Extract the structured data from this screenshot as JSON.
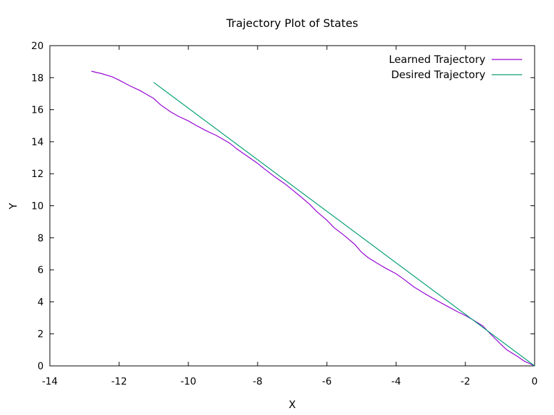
{
  "chart_data": {
    "type": "line",
    "title": "Trajectory Plot of States",
    "xlabel": "X",
    "ylabel": "Y",
    "xlim": [
      -14,
      0
    ],
    "ylim": [
      0,
      20
    ],
    "xticks": [
      "-14",
      "-12",
      "-10",
      "-8",
      "-6",
      "-4",
      "-2",
      "0"
    ],
    "yticks": [
      "0",
      "2",
      "4",
      "6",
      "8",
      "10",
      "12",
      "14",
      "16",
      "18",
      "20"
    ],
    "grid": false,
    "legend_position": "top-right",
    "series": [
      {
        "name": "Learned Trajectory",
        "color": "#9400D3",
        "x": [
          -12.8,
          -12.5,
          -12.2,
          -12.0,
          -11.7,
          -11.4,
          -11.2,
          -11.0,
          -10.8,
          -10.5,
          -10.3,
          -10.0,
          -9.8,
          -9.5,
          -9.2,
          -9.0,
          -8.8,
          -8.6,
          -8.3,
          -8.0,
          -7.8,
          -7.5,
          -7.2,
          -7.0,
          -6.8,
          -6.5,
          -6.3,
          -6.0,
          -5.8,
          -5.5,
          -5.2,
          -5.0,
          -4.8,
          -4.5,
          -4.3,
          -4.0,
          -3.8,
          -3.5,
          -3.2,
          -3.0,
          -2.8,
          -2.5,
          -2.2,
          -2.0,
          -1.8,
          -1.5,
          -1.3,
          -1.0,
          -0.8,
          -0.5,
          -0.3,
          0.0
        ],
        "y": [
          18.4,
          18.25,
          18.05,
          17.85,
          17.5,
          17.2,
          16.95,
          16.7,
          16.3,
          15.85,
          15.6,
          15.3,
          15.05,
          14.7,
          14.4,
          14.15,
          13.9,
          13.55,
          13.1,
          12.65,
          12.3,
          11.8,
          11.35,
          11.0,
          10.65,
          10.1,
          9.65,
          9.1,
          8.65,
          8.15,
          7.6,
          7.1,
          6.75,
          6.35,
          6.1,
          5.75,
          5.45,
          4.95,
          4.55,
          4.3,
          4.05,
          3.7,
          3.35,
          3.15,
          2.9,
          2.5,
          2.05,
          1.4,
          1.0,
          0.6,
          0.3,
          0.0
        ]
      },
      {
        "name": "Desired Trajectory",
        "color": "#009E73",
        "x": [
          -11.0,
          0.0
        ],
        "y": [
          17.7,
          0.0
        ]
      }
    ]
  }
}
